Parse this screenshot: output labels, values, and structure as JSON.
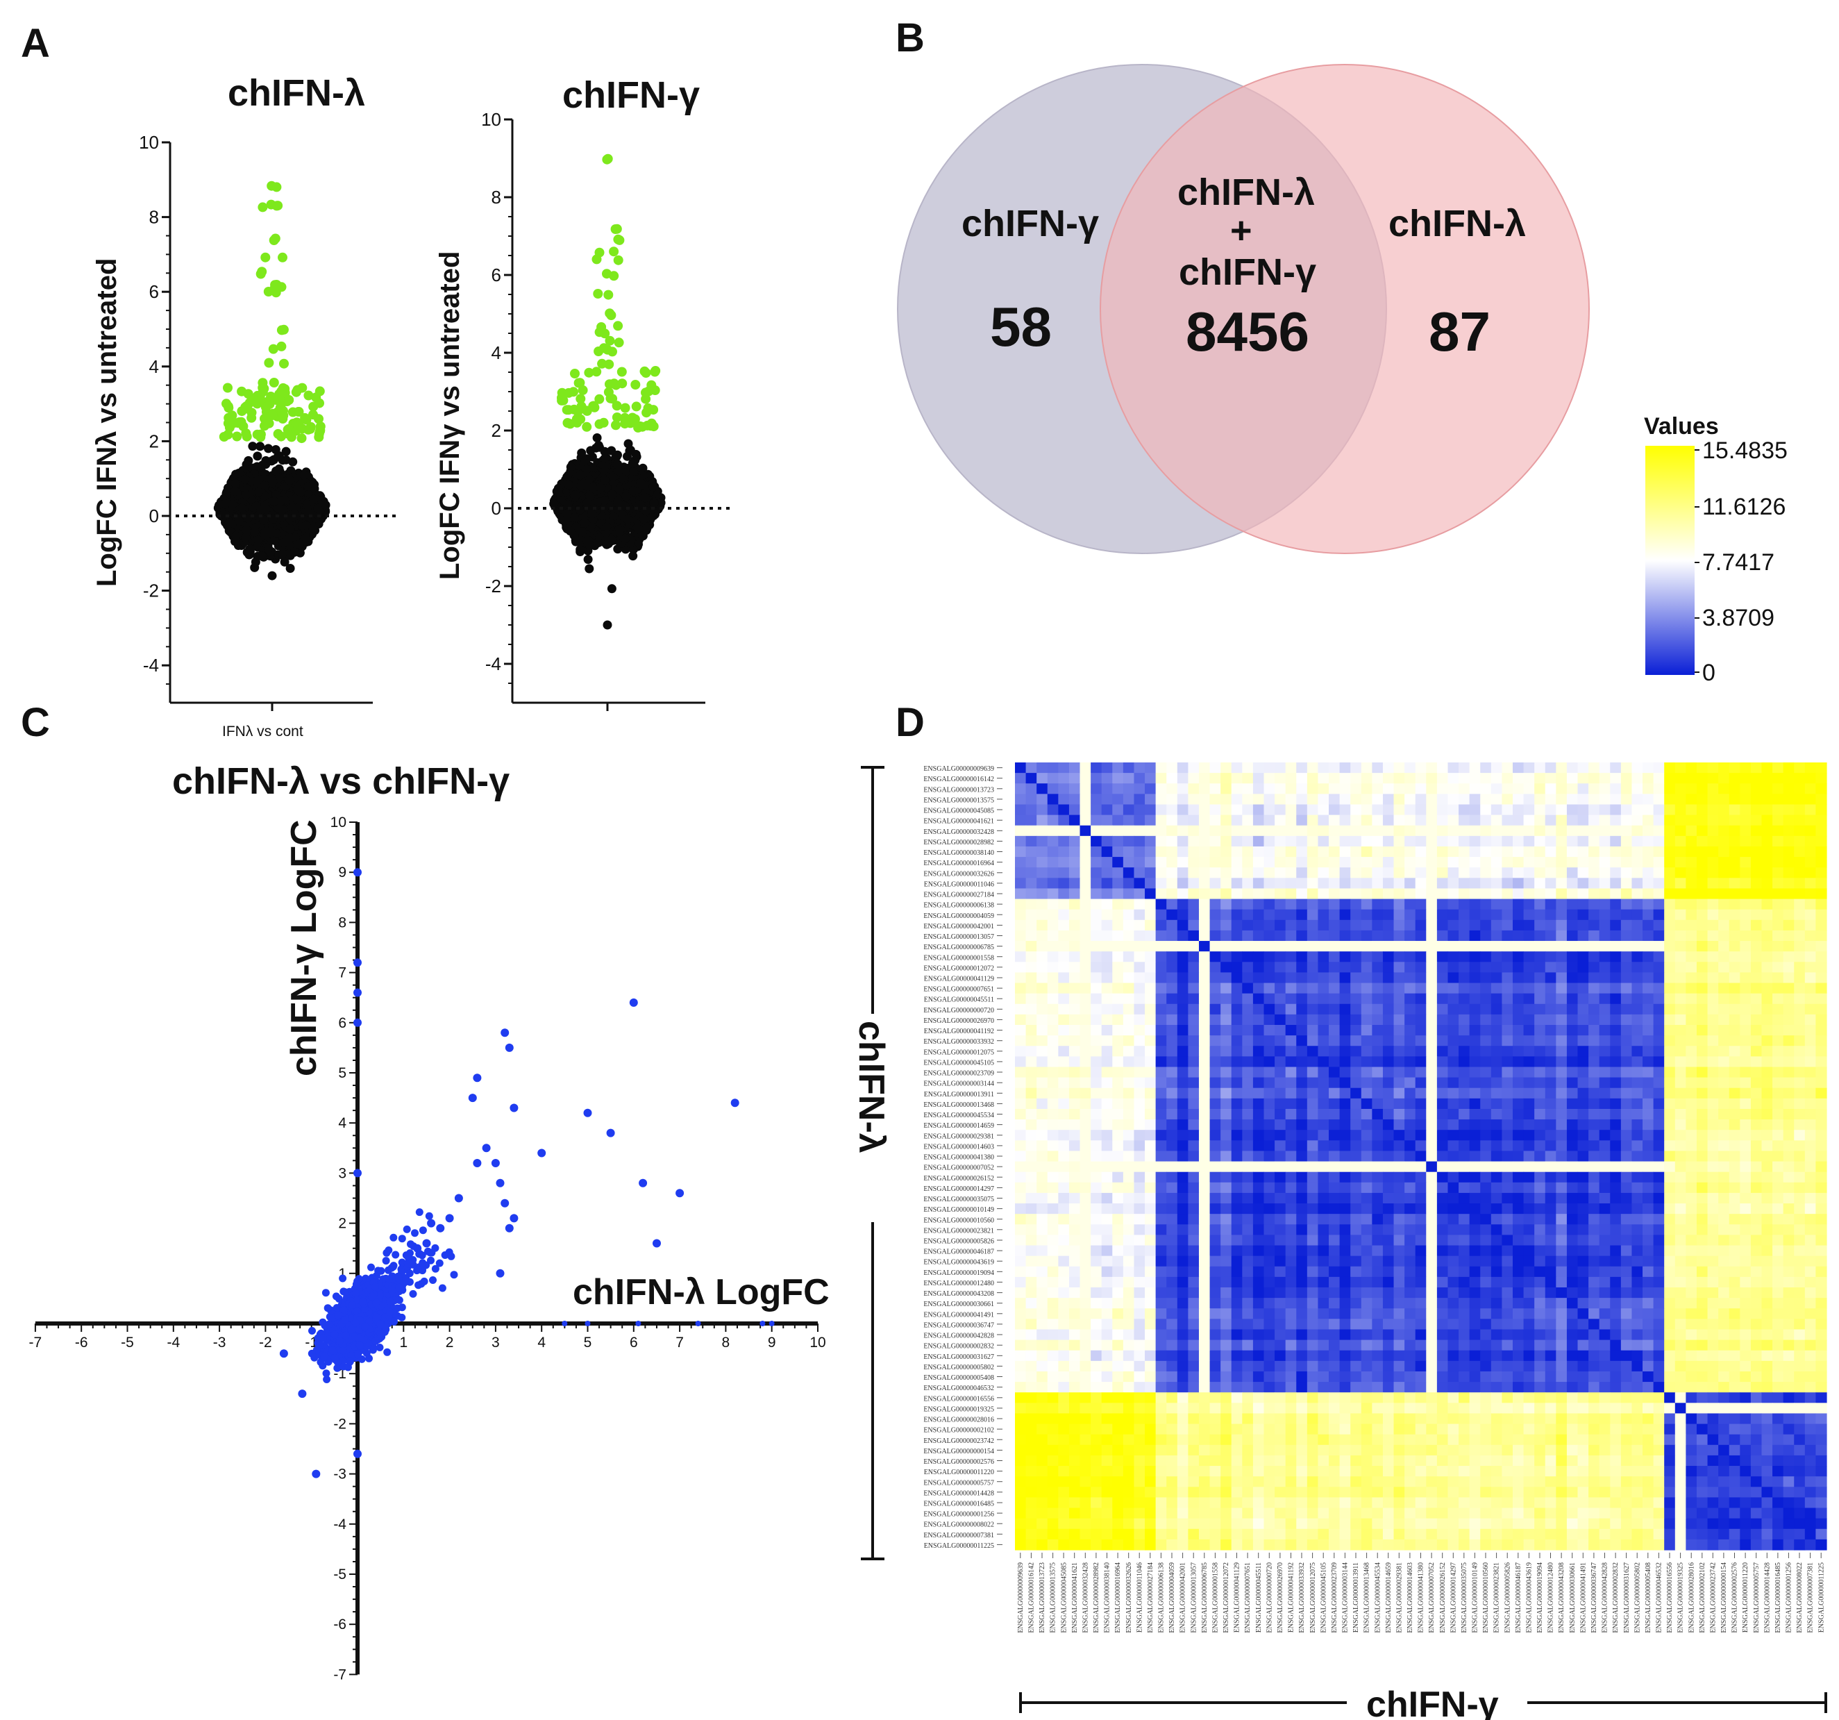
{
  "panels": {
    "a": {
      "letter": "A",
      "left_title": "chIFN-λ",
      "right_title": "chIFN-γ",
      "left_ylabel": "LogFC IFNλ vs untreated",
      "right_ylabel": "LogFC IFNγ vs untreated",
      "left_xtick": "IFNλ vs cont"
    },
    "b": {
      "letter": "B",
      "gamma_label": "chIFN-γ",
      "gamma_count": "58",
      "overlap_label_1": "chIFN-λ",
      "overlap_plus": "+",
      "overlap_label_2": "chIFN-γ",
      "overlap_count": "8456",
      "lambda_label": "chIFN-λ",
      "lambda_count": "87",
      "legend_title": "Values",
      "legend_ticks": [
        "15.4835",
        "11.6126",
        "7.7417",
        "3.8709",
        "0"
      ]
    },
    "c": {
      "letter": "C",
      "title": "chIFN-λ vs chIFN-γ",
      "ylabel": "chIFN-γ LogFC",
      "xlabel": "chIFN-λ LogFC"
    },
    "d": {
      "letter": "D",
      "row_axis_label": "chIFN-λ",
      "col_axis_label": "chIFN-γ"
    }
  },
  "colors": {
    "green": "#7ee81c",
    "black": "#0a0a0a",
    "blue_point": "#1f3cf0",
    "venn_gamma": "#c5c4d6",
    "venn_lambda": "#f3b6b8",
    "venn_overlap": "#c79aa6",
    "heat_low": "#0a1fd6",
    "heat_mid": "#ffffff",
    "heat_high": "#ffff00"
  },
  "chart_data": [
    {
      "type": "scatter",
      "panel": "A-left",
      "title": "chIFN-λ",
      "ylabel": "LogFC IFNλ vs untreated",
      "ylim": [
        -5,
        10
      ],
      "yticks": [
        "10",
        "8",
        "6",
        "4",
        "2",
        "0",
        "-2",
        "-4"
      ],
      "threshold_line": 0,
      "upregulated_values": [
        8.8,
        8.3,
        8.3,
        7.4,
        6.9,
        6.5,
        6.2,
        6.1,
        6.0,
        5.0,
        4.5,
        4.1,
        3.6,
        3.4,
        3.3,
        3.2,
        3.1,
        3.0,
        2.9,
        2.8,
        2.7,
        2.6,
        2.5,
        2.4,
        2.3,
        2.2,
        2.1
      ],
      "min_value": -1.6
    },
    {
      "type": "scatter",
      "panel": "A-right",
      "title": "chIFN-γ",
      "ylabel": "LogFC IFNγ vs untreated",
      "ylim": [
        -5,
        10
      ],
      "yticks": [
        "10",
        "8",
        "6",
        "4",
        "2",
        "0",
        "-2",
        "-4"
      ],
      "threshold_line": 0,
      "upregulated_values": [
        9.0,
        7.2,
        6.9,
        6.6,
        6.4,
        6.0,
        5.5,
        5.0,
        4.7,
        4.5,
        4.3,
        4.1,
        4.0,
        3.7,
        3.5,
        3.2,
        3.0,
        2.8,
        2.6,
        2.5,
        2.3,
        2.2,
        2.1
      ],
      "min_value": -3.0
    },
    {
      "type": "scatter",
      "panel": "C",
      "title": "chIFN-λ vs chIFN-γ",
      "xlabel": "chIFN-λ LogFC",
      "ylabel": "chIFN-γ LogFC",
      "xlim": [
        -7,
        10
      ],
      "ylim": [
        -7,
        10
      ],
      "xticks": [
        "-7",
        "-6",
        "-5",
        "-4",
        "-3",
        "-2",
        "-1",
        "1",
        "2",
        "3",
        "4",
        "5",
        "6",
        "7",
        "8",
        "9",
        "10"
      ],
      "yticks": [
        "10",
        "9",
        "8",
        "7",
        "6",
        "5",
        "4",
        "3",
        "2",
        "1",
        "-1",
        "-2",
        "-3",
        "-4",
        "-5",
        "-6",
        "-7"
      ],
      "points": [
        [
          6.0,
          6.4
        ],
        [
          8.2,
          4.4
        ],
        [
          5.0,
          4.2
        ],
        [
          5.5,
          3.8
        ],
        [
          6.2,
          2.8
        ],
        [
          7.0,
          2.6
        ],
        [
          6.5,
          1.6
        ],
        [
          3.2,
          5.8
        ],
        [
          3.3,
          5.5
        ],
        [
          2.6,
          4.9
        ],
        [
          2.5,
          4.5
        ],
        [
          3.4,
          4.3
        ],
        [
          4.0,
          3.4
        ],
        [
          2.8,
          3.5
        ],
        [
          3.0,
          3.2
        ],
        [
          2.6,
          3.2
        ],
        [
          3.1,
          2.8
        ],
        [
          3.2,
          2.4
        ],
        [
          3.4,
          2.1
        ],
        [
          3.3,
          1.9
        ],
        [
          3.1,
          1.0
        ],
        [
          2.2,
          2.5
        ],
        [
          2.0,
          2.1
        ],
        [
          1.8,
          1.9
        ],
        [
          1.6,
          2.0
        ],
        [
          1.5,
          1.6
        ],
        [
          1.3,
          1.5
        ],
        [
          1.1,
          1.2
        ],
        [
          0.0,
          9.0
        ],
        [
          0.0,
          7.2
        ],
        [
          0.0,
          6.6
        ],
        [
          0.0,
          6.0
        ],
        [
          0.0,
          3.0
        ],
        [
          -0.9,
          -3.0
        ],
        [
          -1.6,
          -0.6
        ],
        [
          -1.2,
          -1.4
        ],
        [
          0.0,
          -2.6
        ]
      ],
      "axis_points": [
        [
          9.0,
          0.0
        ],
        [
          8.8,
          0.0
        ],
        [
          7.4,
          0.0
        ],
        [
          6.1,
          0.0
        ],
        [
          5.0,
          0.0
        ],
        [
          4.5,
          0.0
        ]
      ]
    },
    {
      "type": "heatmap",
      "panel": "D",
      "legend_title": "Values",
      "value_range": [
        0,
        15.4835
      ],
      "legend_ticks": [
        15.4835,
        11.6126,
        7.7417,
        3.8709,
        0
      ],
      "row_axis": "chIFN-λ",
      "col_axis": "chIFN-γ",
      "labels": [
        "ENSGALG00000009639",
        "ENSGALG00000016142",
        "ENSGALG00000013723",
        "ENSGALG00000013575",
        "ENSGALG00000045085",
        "ENSGALG00000041621",
        "ENSGALG00000032428",
        "ENSGALG00000028982",
        "ENSGALG00000038140",
        "ENSGALG00000016964",
        "ENSGALG00000032626",
        "ENSGALG00000011046",
        "ENSGALG00000027184",
        "ENSGALG00000006138",
        "ENSGALG00000004059",
        "ENSGALG00000042001",
        "ENSGALG00000013057",
        "ENSGALG00000006785",
        "ENSGALG00000001558",
        "ENSGALG00000012072",
        "ENSGALG00000041129",
        "ENSGALG00000007651",
        "ENSGALG00000045511",
        "ENSGALG00000000720",
        "ENSGALG00000026970",
        "ENSGALG00000041192",
        "ENSGALG00000033932",
        "ENSGALG00000012075",
        "ENSGALG00000045105",
        "ENSGALG00000023709",
        "ENSGALG00000003144",
        "ENSGALG00000013911",
        "ENSGALG00000013468",
        "ENSGALG00000045534",
        "ENSGALG00000014659",
        "ENSGALG00000029381",
        "ENSGALG00000014603",
        "ENSGALG00000041380",
        "ENSGALG00000007052",
        "ENSGALG00000026152",
        "ENSGALG00000014297",
        "ENSGALG00000035075",
        "ENSGALG00000010149",
        "ENSGALG00000010560",
        "ENSGALG00000023821",
        "ENSGALG00000005826",
        "ENSGALG00000046187",
        "ENSGALG00000043619",
        "ENSGALG00000019094",
        "ENSGALG00000012480",
        "ENSGALG00000043208",
        "ENSGALG00000030661",
        "ENSGALG00000041491",
        "ENSGALG00000036747",
        "ENSGALG00000042828",
        "ENSGALG00000002832",
        "ENSGALG00000031627",
        "ENSGALG00000005802",
        "ENSGALG00000005408",
        "ENSGALG00000046532",
        "ENSGALG00000016556",
        "ENSGALG00000019325",
        "ENSGALG00000028016",
        "ENSGALG00000002102",
        "ENSGALG00000023742",
        "ENSGALG00000000154",
        "ENSGALG00000002576",
        "ENSGALG00000011220",
        "ENSGALG00000005757",
        "ENSGALG00000014428",
        "ENSGALG00000016485",
        "ENSGALG00000001256",
        "ENSGALG00000008022",
        "ENSGALG00000007381",
        "ENSGALG00000011225"
      ],
      "clusters": [
        {
          "name": "top",
          "start": 0,
          "end": 13
        },
        {
          "name": "middle",
          "start": 13,
          "end": 60
        },
        {
          "name": "bottom",
          "start": 60,
          "end": 75
        }
      ],
      "cluster_value_matrix": [
        [
          3.0,
          8.0,
          15.0
        ],
        [
          8.0,
          1.5,
          11.0
        ],
        [
          15.0,
          11.0,
          1.0
        ]
      ],
      "bright_rows": [
        6,
        17,
        38,
        61
      ],
      "bright_cols": [
        6,
        17,
        38,
        61
      ]
    }
  ]
}
